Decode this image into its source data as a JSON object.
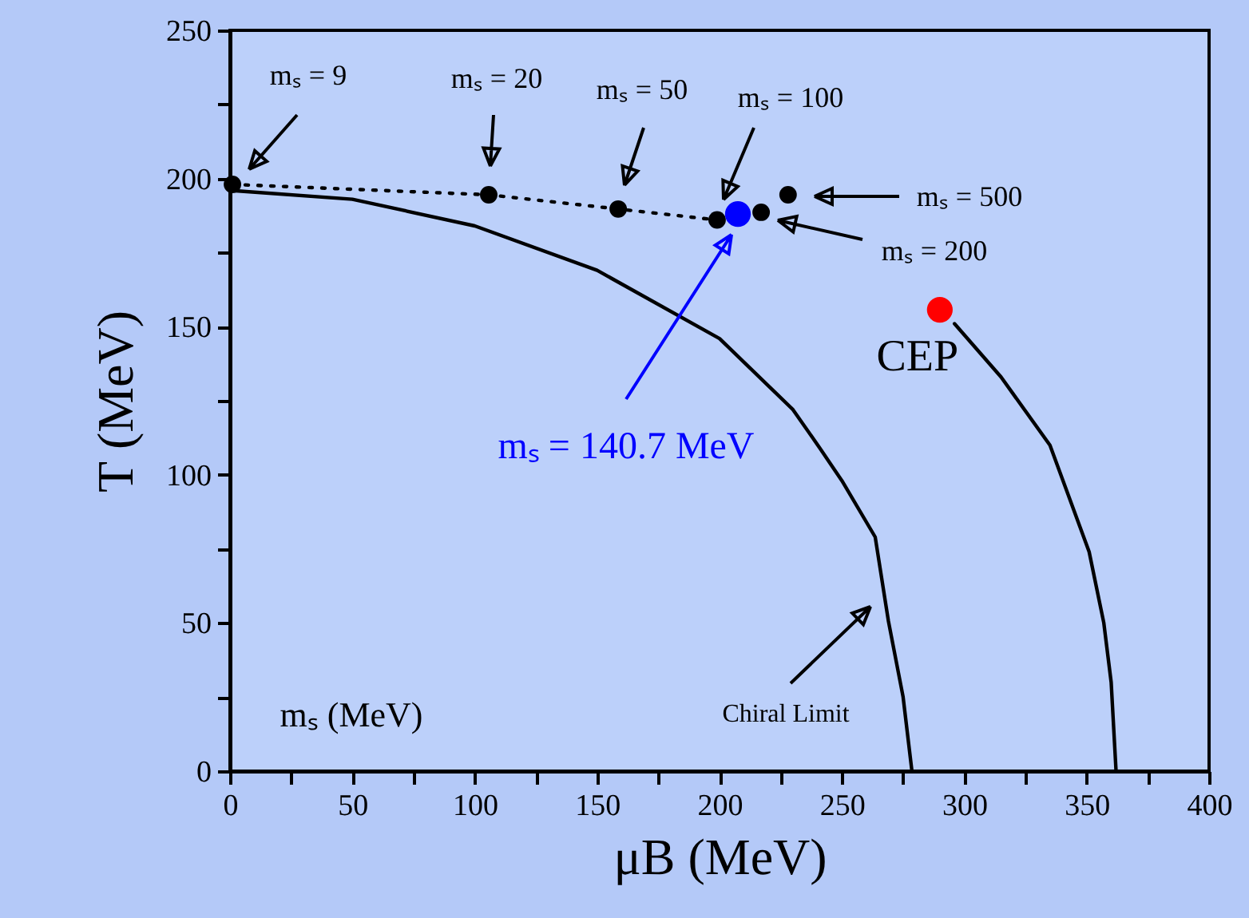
{
  "chart_data": {
    "type": "line",
    "xlabel": "μB (MeV)",
    "ylabel": "T (MeV)",
    "xlim": [
      0,
      400
    ],
    "ylim": [
      0,
      250
    ],
    "xticks": [
      0,
      {
        "value": 25,
        "label": null
      },
      50,
      {
        "value": 75,
        "label": null
      },
      100,
      {
        "value": 125,
        "label": null
      },
      150,
      {
        "value": 175,
        "label": null
      },
      200,
      {
        "value": 225,
        "label": null
      },
      250,
      {
        "value": 275,
        "label": null
      },
      300,
      {
        "value": 325,
        "label": null
      },
      350,
      {
        "value": 375,
        "label": null
      },
      400
    ],
    "yticks": [
      0,
      {
        "value": 25,
        "label": null
      },
      50,
      {
        "value": 75,
        "label": null
      },
      100,
      {
        "value": 125,
        "label": null
      },
      150,
      {
        "value": 175,
        "label": null
      },
      200,
      {
        "value": 225,
        "label": null
      },
      250
    ],
    "grid": false,
    "series": [
      {
        "color": "#000000",
        "line_style": "solid",
        "x": [
          0,
          50,
          100,
          150,
          200,
          230,
          241,
          250,
          263.6,
          269,
          275,
          278.6
        ],
        "values": [
          196,
          193,
          184,
          169,
          146,
          122,
          109,
          98,
          79,
          50.6,
          25,
          0
        ]
      },
      {
        "color": "#000000",
        "line_style": "solid",
        "x": [
          296,
          315,
          335,
          351,
          357,
          360,
          362
        ],
        "values": [
          151,
          133,
          110,
          74,
          50,
          30,
          0
        ]
      },
      {
        "color": "#000000",
        "line_style": "dotted",
        "x": [
          1,
          105.7,
          158.6,
          199
        ],
        "values": [
          198,
          194.5,
          189.7,
          186
        ]
      },
      {
        "type": "scatter",
        "marker": "circle",
        "color": "#000000",
        "x": [
          1,
          105.7,
          158.6,
          199,
          217,
          228
        ],
        "values": [
          198,
          194.5,
          189.7,
          186,
          188.6,
          194.5
        ]
      },
      {
        "type": "scatter",
        "marker": "circle",
        "color": "#0000ff",
        "x": [
          207.5
        ],
        "values": [
          188
        ]
      },
      {
        "type": "scatter",
        "marker": "circle",
        "color": "#ff0000",
        "x": [
          290
        ],
        "values": [
          155.7
        ]
      }
    ],
    "annotations": [
      "mₛ = 9",
      "mₛ = 20",
      "mₛ = 50",
      "mₛ = 100",
      "mₛ = 200",
      "mₛ = 500",
      "mₛ = 140.7 MeV",
      {
        "text": "CEP",
        "x": 290,
        "y": 155.7
      },
      "Chiral Limit",
      "mₛ (MeV)"
    ]
  }
}
